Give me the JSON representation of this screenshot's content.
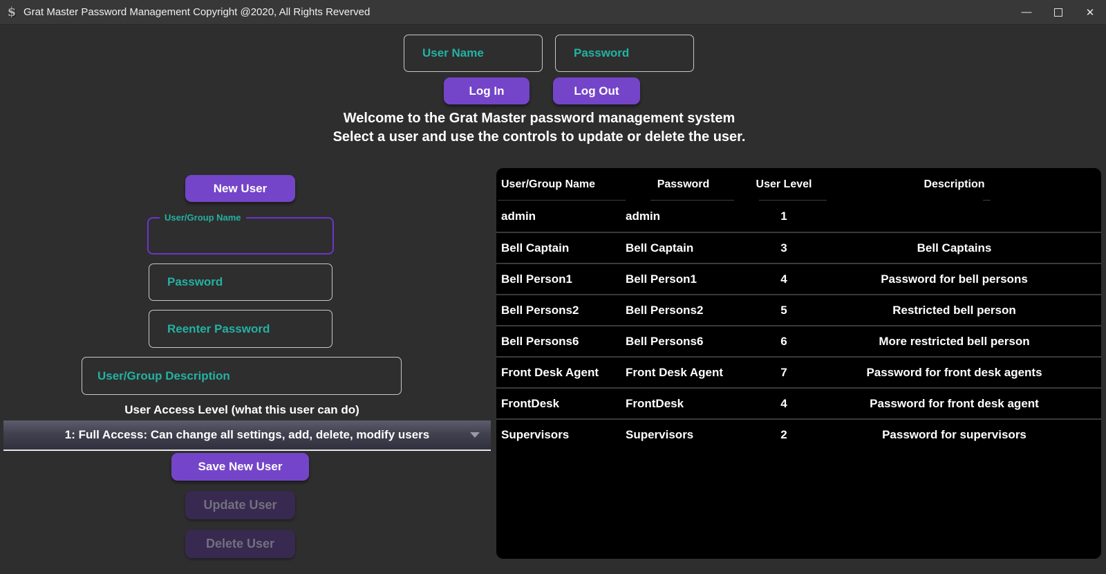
{
  "window": {
    "title": "Grat Master Password Management Copyright @2020, All Rights Reverved",
    "app_icon_glyph": "$",
    "minimize_glyph": "—",
    "close_glyph": "✕"
  },
  "colors": {
    "accent_purple": "#7445c9",
    "teal": "#23b2a2",
    "background": "#2e2e2e",
    "titlebar": "#383838",
    "table_background": "#000000",
    "disabled_button": "#37294f"
  },
  "login": {
    "username_placeholder": "User Name",
    "password_placeholder": "Password",
    "login_button": "Log In",
    "logout_button": "Log Out"
  },
  "welcome": {
    "line1": "Welcome to the Grat Master password management system",
    "line2": "Select a user and use the controls to update or delete the user."
  },
  "form": {
    "new_user_button": "New User",
    "name_label": "User/Group Name",
    "name_value": "",
    "password_placeholder": "Password",
    "reenter_placeholder": "Reenter Password",
    "description_placeholder": "User/Group Description",
    "access_level_label": "User Access Level (what this user can do)",
    "access_level_selected": "1: Full Access: Can change all settings, add, delete, modify users",
    "save_button": "Save New User",
    "update_button": "Update User",
    "delete_button": "Delete User"
  },
  "table": {
    "headers": [
      "User/Group Name",
      "Password",
      "User Level",
      "Description"
    ],
    "rows": [
      {
        "name": "admin",
        "password": "admin",
        "level": "1",
        "description": ""
      },
      {
        "name": "Bell Captain",
        "password": "Bell Captain",
        "level": "3",
        "description": "Bell Captains"
      },
      {
        "name": "Bell Person1",
        "password": "Bell Person1",
        "level": "4",
        "description": "Password for bell persons"
      },
      {
        "name": "Bell Persons2",
        "password": "Bell Persons2",
        "level": "5",
        "description": "Restricted bell person"
      },
      {
        "name": "Bell Persons6",
        "password": "Bell Persons6",
        "level": "6",
        "description": "More restricted bell person"
      },
      {
        "name": "Front Desk Agent",
        "password": "Front Desk Agent",
        "level": "7",
        "description": "Password for front desk agents"
      },
      {
        "name": "FrontDesk",
        "password": "FrontDesk",
        "level": "4",
        "description": "Password for front desk agent"
      },
      {
        "name": "Supervisors",
        "password": "Supervisors",
        "level": "2",
        "description": "Password for supervisors"
      }
    ]
  }
}
